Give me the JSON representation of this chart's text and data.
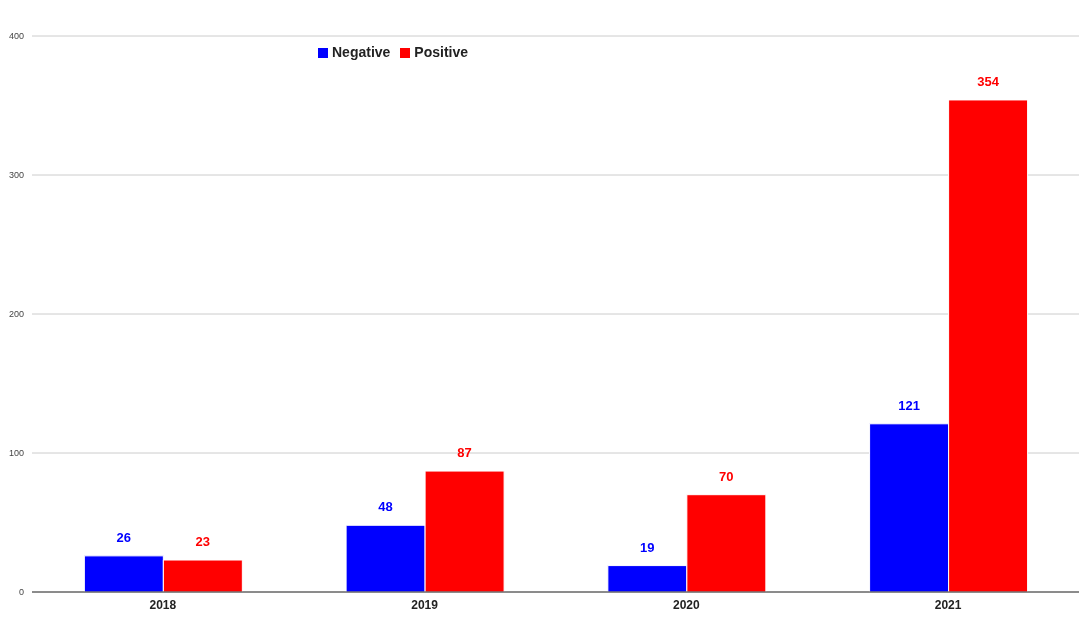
{
  "chart_data": {
    "type": "bar",
    "categories": [
      "2018",
      "2019",
      "2020",
      "2021"
    ],
    "series": [
      {
        "name": "Negative",
        "color": "#0000ff",
        "values": [
          26,
          48,
          19,
          121
        ]
      },
      {
        "name": "Positive",
        "color": "#ff0000",
        "values": [
          23,
          87,
          70,
          354
        ]
      }
    ],
    "ylim": [
      0,
      400
    ],
    "yticks": [
      0,
      100,
      200,
      300,
      400
    ],
    "grid": "y",
    "legend": "top",
    "data_labels": true
  }
}
